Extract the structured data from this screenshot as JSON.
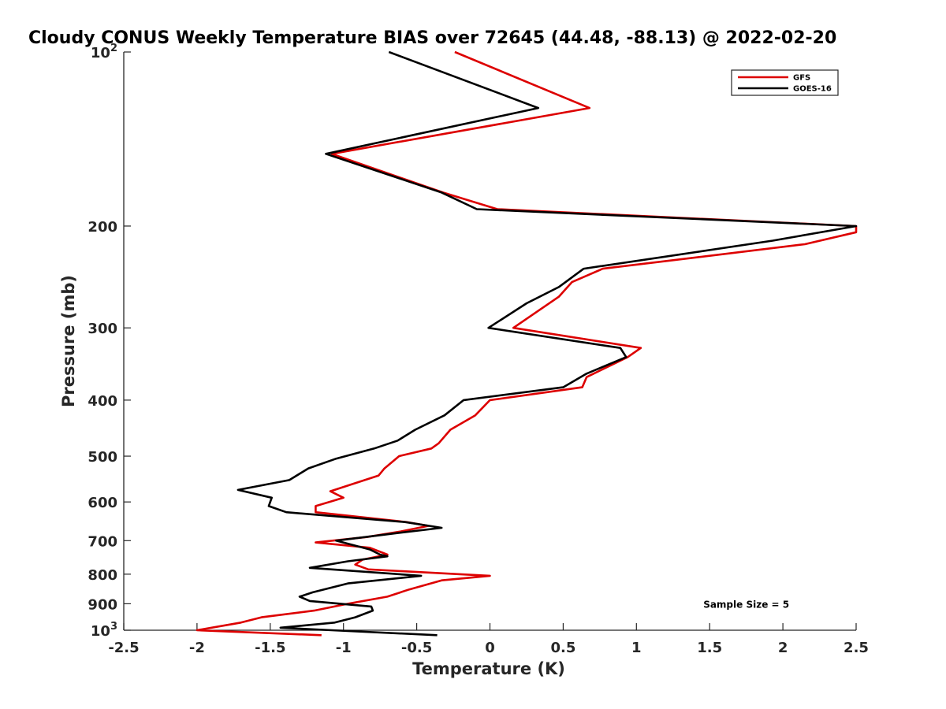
{
  "chart_data": {
    "type": "line",
    "title": "Cloudy CONUS Weekly Temperature BIAS over 72645 (44.48, -88.13) @ 2022-02-20",
    "xlabel": "Temperature (K)",
    "ylabel": "Pressure (mb)",
    "xlim": [
      -2.5,
      2.5
    ],
    "ylim": [
      100,
      1000
    ],
    "yscale": "log",
    "y_direction": "reversed",
    "grid": false,
    "legend_position": "top-right",
    "x_ticks": [
      {
        "value": -2.5,
        "label": "-2.5"
      },
      {
        "value": -2,
        "label": "-2"
      },
      {
        "value": -1.5,
        "label": "-1.5"
      },
      {
        "value": -1,
        "label": "-1"
      },
      {
        "value": -0.5,
        "label": "-0.5"
      },
      {
        "value": 0,
        "label": "0"
      },
      {
        "value": 0.5,
        "label": "0.5"
      },
      {
        "value": 1,
        "label": "1"
      },
      {
        "value": 1.5,
        "label": "1.5"
      },
      {
        "value": 2,
        "label": "2"
      },
      {
        "value": 2.5,
        "label": "2.5"
      }
    ],
    "y_ticks": [
      {
        "value": 100,
        "base": "10",
        "exp": "2"
      },
      {
        "value": 200,
        "label": "200"
      },
      {
        "value": 300,
        "label": "300"
      },
      {
        "value": 400,
        "label": "400"
      },
      {
        "value": 500,
        "label": "500"
      },
      {
        "value": 600,
        "label": "600"
      },
      {
        "value": 700,
        "label": "700"
      },
      {
        "value": 800,
        "label": "800"
      },
      {
        "value": 900,
        "label": "900"
      },
      {
        "value": 1000,
        "base": "10",
        "exp": "3"
      }
    ],
    "series": [
      {
        "name": "GFS",
        "color": "#dd0000",
        "points": [
          [
            -0.24,
            100
          ],
          [
            0.68,
            125
          ],
          [
            -1.08,
            150
          ],
          [
            -0.32,
            175
          ],
          [
            0.05,
            187
          ],
          [
            2.5,
            200
          ],
          [
            2.5,
            205
          ],
          [
            2.15,
            215
          ],
          [
            0.77,
            237
          ],
          [
            0.56,
            250
          ],
          [
            0.47,
            265
          ],
          [
            0.16,
            300
          ],
          [
            1.03,
            325
          ],
          [
            0.94,
            337
          ],
          [
            0.66,
            365
          ],
          [
            0.63,
            380
          ],
          [
            0.0,
            400
          ],
          [
            -0.1,
            425
          ],
          [
            -0.27,
            450
          ],
          [
            -0.35,
            475
          ],
          [
            -0.4,
            485
          ],
          [
            -0.62,
            500
          ],
          [
            -0.72,
            525
          ],
          [
            -0.76,
            540
          ],
          [
            -1.09,
            575
          ],
          [
            -1.0,
            590
          ],
          [
            -1.19,
            610
          ],
          [
            -1.19,
            625
          ],
          [
            -0.57,
            650
          ],
          [
            -0.42,
            660
          ],
          [
            -0.61,
            675
          ],
          [
            -0.84,
            690
          ],
          [
            -1.19,
            705
          ],
          [
            -0.82,
            720
          ],
          [
            -0.7,
            740
          ],
          [
            -0.87,
            755
          ],
          [
            -0.92,
            770
          ],
          [
            -0.83,
            785
          ],
          [
            0.0,
            805
          ],
          [
            -0.33,
            820
          ],
          [
            -0.55,
            850
          ],
          [
            -0.7,
            875
          ],
          [
            -0.97,
            900
          ],
          [
            -1.2,
            925
          ],
          [
            -1.56,
            950
          ],
          [
            -1.7,
            970
          ],
          [
            -2.0,
            1000
          ],
          [
            -1.15,
            1020
          ]
        ]
      },
      {
        "name": "GOES-16",
        "color": "#000000",
        "points": [
          [
            -0.69,
            100
          ],
          [
            0.33,
            125
          ],
          [
            -1.12,
            150
          ],
          [
            -0.33,
            175
          ],
          [
            -0.09,
            187
          ],
          [
            2.5,
            200
          ],
          [
            1.93,
            212
          ],
          [
            0.64,
            237
          ],
          [
            0.47,
            255
          ],
          [
            0.25,
            272
          ],
          [
            -0.01,
            300
          ],
          [
            0.89,
            325
          ],
          [
            0.93,
            337
          ],
          [
            0.66,
            360
          ],
          [
            0.5,
            380
          ],
          [
            -0.18,
            400
          ],
          [
            -0.31,
            425
          ],
          [
            -0.51,
            450
          ],
          [
            -0.63,
            470
          ],
          [
            -0.79,
            485
          ],
          [
            -1.05,
            505
          ],
          [
            -1.24,
            525
          ],
          [
            -1.37,
            550
          ],
          [
            -1.72,
            572
          ],
          [
            -1.49,
            590
          ],
          [
            -1.51,
            610
          ],
          [
            -1.39,
            625
          ],
          [
            -0.58,
            650
          ],
          [
            -0.33,
            665
          ],
          [
            -0.65,
            680
          ],
          [
            -1.05,
            700
          ],
          [
            -0.82,
            725
          ],
          [
            -0.75,
            740
          ],
          [
            -0.7,
            745
          ],
          [
            -0.97,
            760
          ],
          [
            -1.23,
            780
          ],
          [
            -0.47,
            805
          ],
          [
            -0.97,
            830
          ],
          [
            -1.21,
            860
          ],
          [
            -1.3,
            875
          ],
          [
            -1.23,
            890
          ],
          [
            -0.81,
            910
          ],
          [
            -0.8,
            925
          ],
          [
            -0.92,
            950
          ],
          [
            -1.06,
            970
          ],
          [
            -1.43,
            990
          ],
          [
            -1.08,
            1000
          ],
          [
            -0.36,
            1020
          ]
        ]
      }
    ],
    "annotations": [
      {
        "text": "Sample Size = 5",
        "x": 1.75,
        "y": 900
      }
    ]
  }
}
